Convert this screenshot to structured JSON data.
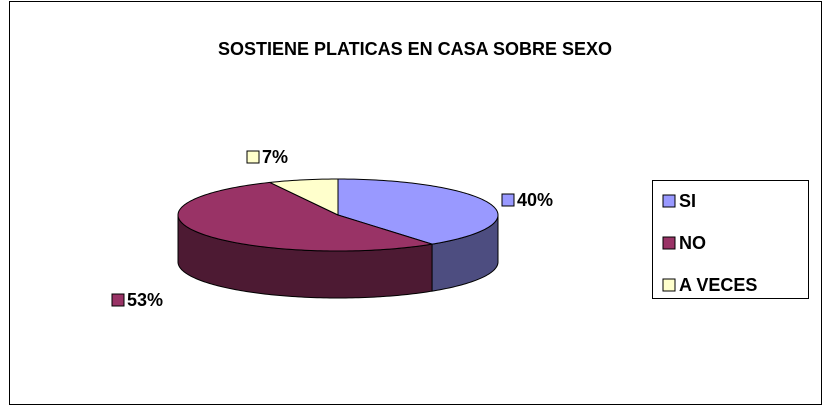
{
  "chart_data": {
    "type": "pie",
    "title": "SOSTIENE PLATICAS EN CASA SOBRE SEXO",
    "categories": [
      "SI",
      "NO",
      "A VECES"
    ],
    "values": [
      40,
      53,
      7
    ],
    "value_labels": [
      "40%",
      "53%",
      "7%"
    ],
    "colors": [
      "#9999ff",
      "#993366",
      "#ffffcc"
    ],
    "legend": "right"
  }
}
